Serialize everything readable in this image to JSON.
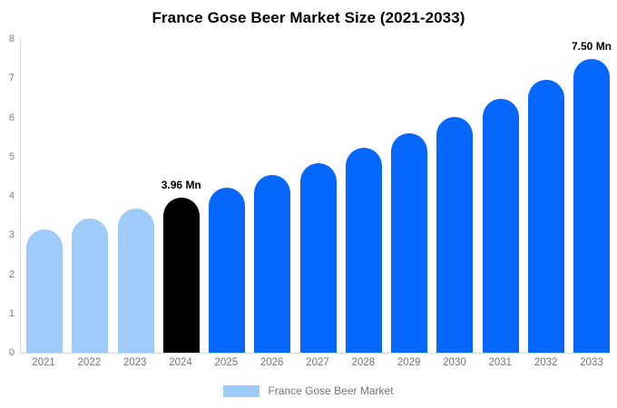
{
  "chart_data": {
    "type": "bar",
    "title": "France Gose Beer Market Size (2021-2033)",
    "xlabel": "",
    "ylabel": "",
    "unit": "Mn",
    "categories": [
      "2021",
      "2022",
      "2023",
      "2024",
      "2025",
      "2026",
      "2027",
      "2028",
      "2029",
      "2030",
      "2031",
      "2032",
      "2033"
    ],
    "values": [
      3.15,
      3.42,
      3.68,
      3.96,
      4.22,
      4.53,
      4.84,
      5.22,
      5.6,
      6.02,
      6.47,
      6.95,
      7.5
    ],
    "point_labels": [
      "",
      "",
      "",
      "3.96 Mn",
      "",
      "",
      "",
      "",
      "",
      "",
      "",
      "",
      "7.50 Mn"
    ],
    "bar_colors": [
      "#9ecbf9",
      "#9ecbf9",
      "#9ecbf9",
      "#000000",
      "#0667fc",
      "#0667fc",
      "#0667fc",
      "#0667fc",
      "#0667fc",
      "#0667fc",
      "#0667fc",
      "#0667fc",
      "#0667fc"
    ],
    "ylim": [
      0,
      8
    ],
    "yticks": [
      0,
      1,
      2,
      3,
      4,
      5,
      6,
      7,
      8
    ],
    "grid": "off",
    "legend": {
      "label": "France Gose Beer Market",
      "swatch_color": "#9ecbf9",
      "position": "bottom-center"
    }
  },
  "colors": {
    "historical_bar": "#9ecbf9",
    "base_year_bar": "#000000",
    "forecast_bar": "#0667fc",
    "axis_line": "#d9d9d9",
    "tick_text": "#808080",
    "axis_label_text": "#757575",
    "title_text": "#000000",
    "background": "#ffffff"
  }
}
